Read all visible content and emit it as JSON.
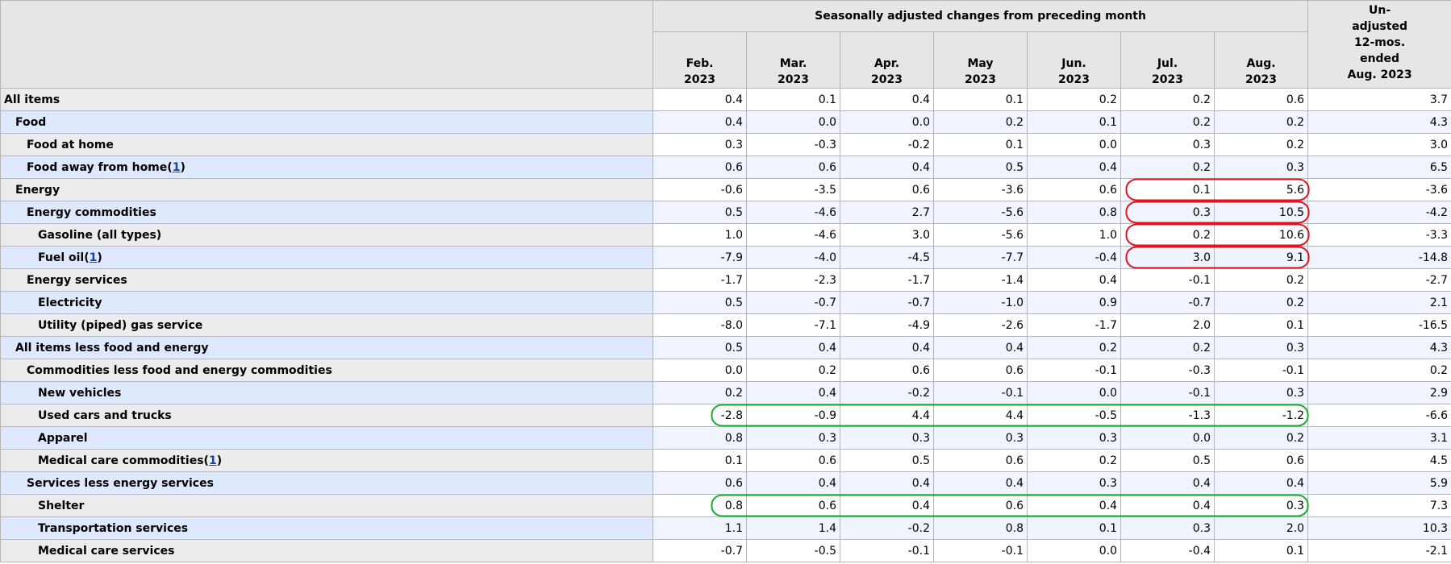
{
  "header": {
    "group_title": "Seasonally adjusted changes from preceding month",
    "months": [
      {
        "month": "Feb.",
        "year": "2023"
      },
      {
        "month": "Mar.",
        "year": "2023"
      },
      {
        "month": "Apr.",
        "year": "2023"
      },
      {
        "month": "May",
        "year": "2023"
      },
      {
        "month": "Jun.",
        "year": "2023"
      },
      {
        "month": "Jul.",
        "year": "2023"
      },
      {
        "month": "Aug.",
        "year": "2023"
      }
    ],
    "unadjusted_lines": [
      "Un-",
      "adjusted",
      "12-mos.",
      "ended",
      "Aug. 2023"
    ]
  },
  "rows": [
    {
      "label": "All items",
      "indent": 0,
      "values": [
        "0.4",
        "0.1",
        "0.4",
        "0.1",
        "0.2",
        "0.2",
        "0.6"
      ],
      "unadjusted": "3.7"
    },
    {
      "label": "Food",
      "indent": 1,
      "values": [
        "0.4",
        "0.0",
        "0.0",
        "0.2",
        "0.1",
        "0.2",
        "0.2"
      ],
      "unadjusted": "4.3"
    },
    {
      "label": "Food at home",
      "indent": 2,
      "values": [
        "0.3",
        "-0.3",
        "-0.2",
        "0.1",
        "0.0",
        "0.3",
        "0.2"
      ],
      "unadjusted": "3.0"
    },
    {
      "label": "Food away from home",
      "footnote": "1",
      "indent": 2,
      "values": [
        "0.6",
        "0.6",
        "0.4",
        "0.5",
        "0.4",
        "0.2",
        "0.3"
      ],
      "unadjusted": "6.5"
    },
    {
      "label": "Energy",
      "indent": 1,
      "values": [
        "-0.6",
        "-3.5",
        "0.6",
        "-3.6",
        "0.6",
        "0.1",
        "5.6"
      ],
      "unadjusted": "-3.6"
    },
    {
      "label": "Energy commodities",
      "indent": 2,
      "values": [
        "0.5",
        "-4.6",
        "2.7",
        "-5.6",
        "0.8",
        "0.3",
        "10.5"
      ],
      "unadjusted": "-4.2"
    },
    {
      "label": "Gasoline (all types)",
      "indent": 3,
      "values": [
        "1.0",
        "-4.6",
        "3.0",
        "-5.6",
        "1.0",
        "0.2",
        "10.6"
      ],
      "unadjusted": "-3.3"
    },
    {
      "label": "Fuel oil",
      "footnote": "1",
      "indent": 3,
      "values": [
        "-7.9",
        "-4.0",
        "-4.5",
        "-7.7",
        "-0.4",
        "3.0",
        "9.1"
      ],
      "unadjusted": "-14.8"
    },
    {
      "label": "Energy services",
      "indent": 2,
      "values": [
        "-1.7",
        "-2.3",
        "-1.7",
        "-1.4",
        "0.4",
        "-0.1",
        "0.2"
      ],
      "unadjusted": "-2.7"
    },
    {
      "label": "Electricity",
      "indent": 3,
      "values": [
        "0.5",
        "-0.7",
        "-0.7",
        "-1.0",
        "0.9",
        "-0.7",
        "0.2"
      ],
      "unadjusted": "2.1"
    },
    {
      "label": "Utility (piped) gas service",
      "indent": 3,
      "values": [
        "-8.0",
        "-7.1",
        "-4.9",
        "-2.6",
        "-1.7",
        "2.0",
        "0.1"
      ],
      "unadjusted": "-16.5"
    },
    {
      "label": "All items less food and energy",
      "indent": 1,
      "values": [
        "0.5",
        "0.4",
        "0.4",
        "0.4",
        "0.2",
        "0.2",
        "0.3"
      ],
      "unadjusted": "4.3"
    },
    {
      "label": "Commodities less food and energy commodities",
      "indent": 2,
      "values": [
        "0.0",
        "0.2",
        "0.6",
        "0.6",
        "-0.1",
        "-0.3",
        "-0.1"
      ],
      "unadjusted": "0.2"
    },
    {
      "label": "New vehicles",
      "indent": 3,
      "values": [
        "0.2",
        "0.4",
        "-0.2",
        "-0.1",
        "0.0",
        "-0.1",
        "0.3"
      ],
      "unadjusted": "2.9"
    },
    {
      "label": "Used cars and trucks",
      "indent": 3,
      "values": [
        "-2.8",
        "-0.9",
        "4.4",
        "4.4",
        "-0.5",
        "-1.3",
        "-1.2"
      ],
      "unadjusted": "-6.6"
    },
    {
      "label": "Apparel",
      "indent": 3,
      "values": [
        "0.8",
        "0.3",
        "0.3",
        "0.3",
        "0.3",
        "0.0",
        "0.2"
      ],
      "unadjusted": "3.1"
    },
    {
      "label": "Medical care commodities",
      "footnote": "1",
      "indent": 3,
      "values": [
        "0.1",
        "0.6",
        "0.5",
        "0.6",
        "0.2",
        "0.5",
        "0.6"
      ],
      "unadjusted": "4.5"
    },
    {
      "label": "Services less energy services",
      "indent": 2,
      "values": [
        "0.6",
        "0.4",
        "0.4",
        "0.4",
        "0.3",
        "0.4",
        "0.4"
      ],
      "unadjusted": "5.9"
    },
    {
      "label": "Shelter",
      "indent": 3,
      "values": [
        "0.8",
        "0.6",
        "0.4",
        "0.6",
        "0.4",
        "0.4",
        "0.3"
      ],
      "unadjusted": "7.3"
    },
    {
      "label": "Transportation services",
      "indent": 3,
      "values": [
        "1.1",
        "1.4",
        "-0.2",
        "0.8",
        "0.1",
        "0.3",
        "2.0"
      ],
      "unadjusted": "10.3"
    },
    {
      "label": "Medical care services",
      "indent": 3,
      "values": [
        "-0.7",
        "-0.5",
        "-0.1",
        "-0.1",
        "0.0",
        "-0.4",
        "0.1"
      ],
      "unadjusted": "-2.1"
    }
  ],
  "highlights": {
    "red_color": "#e0141e",
    "green_color": "#13b030",
    "red_rows": [
      4,
      5,
      6,
      7
    ],
    "red_columns": [
      "Jul.",
      "Aug."
    ],
    "green_rows": [
      14,
      18
    ],
    "green_columns": [
      "Feb.",
      "Aug."
    ]
  }
}
